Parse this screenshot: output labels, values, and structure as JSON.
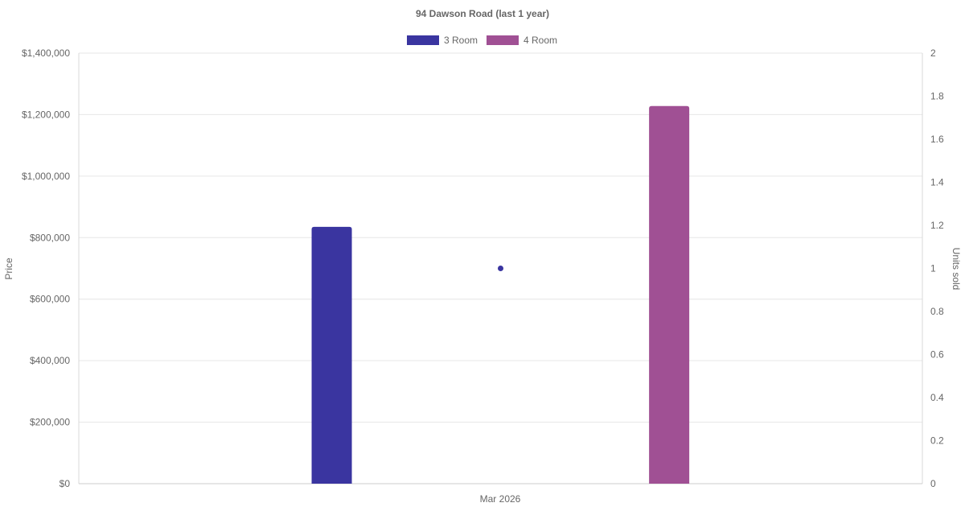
{
  "chart_data": {
    "type": "bar",
    "title": "94 Dawson Road (last 1 year)",
    "categories": [
      "Mar 2026"
    ],
    "series": [
      {
        "name": "3 Room",
        "type": "bar",
        "axis": "left",
        "color": "#3a35a0",
        "values": [
          835000
        ]
      },
      {
        "name": "4 Room",
        "type": "bar",
        "axis": "left",
        "color": "#a05094",
        "values": [
          1228000
        ]
      },
      {
        "type": "scatter",
        "axis": "right",
        "color": "#3a35a0",
        "values": [
          1
        ]
      }
    ],
    "y_left": {
      "label": "Price",
      "ylim": [
        0,
        1400000
      ],
      "ticks": [
        "$0",
        "$200,000",
        "$400,000",
        "$600,000",
        "$800,000",
        "$1,000,000",
        "$1,200,000",
        "$1,400,000"
      ]
    },
    "y_right": {
      "label": "Units sold",
      "ylim": [
        0,
        2
      ],
      "ticks": [
        "0",
        "0.2",
        "0.4",
        "0.6",
        "0.8",
        "1",
        "1.2",
        "1.4",
        "1.6",
        "1.8",
        "2"
      ]
    },
    "grid": true,
    "legend_position": "top"
  }
}
